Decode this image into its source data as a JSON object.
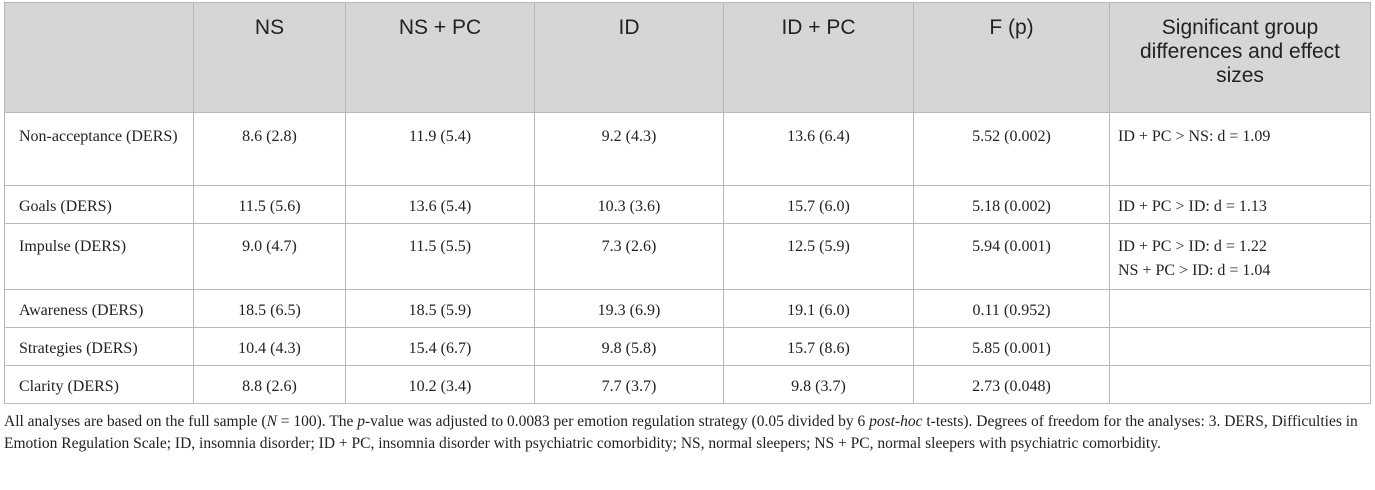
{
  "table": {
    "headers": [
      "",
      "NS",
      "NS + PC",
      "ID",
      "ID + PC",
      "F (p)",
      "Significant group differences and effect sizes"
    ],
    "rows": [
      {
        "label": "Non-acceptance (DERS)",
        "values": [
          "8.6 (2.8)",
          "11.9 (5.4)",
          "9.2 (4.3)",
          "13.6 (6.4)",
          "5.52 (0.002)"
        ],
        "sig": [
          "ID + PC > NS: d = 1.09"
        ]
      },
      {
        "label": "Goals (DERS)",
        "values": [
          "11.5 (5.6)",
          "13.6 (5.4)",
          "10.3 (3.6)",
          "15.7 (6.0)",
          "5.18 (0.002)"
        ],
        "sig": [
          "ID + PC > ID: d = 1.13"
        ]
      },
      {
        "label": "Impulse (DERS)",
        "values": [
          "9.0 (4.7)",
          "11.5 (5.5)",
          "7.3 (2.6)",
          "12.5 (5.9)",
          "5.94 (0.001)"
        ],
        "sig": [
          "ID + PC > ID: d = 1.22",
          "NS + PC > ID: d = 1.04"
        ]
      },
      {
        "label": "Awareness (DERS)",
        "values": [
          "18.5 (6.5)",
          "18.5 (5.9)",
          "19.3 (6.9)",
          "19.1 (6.0)",
          "0.11 (0.952)"
        ],
        "sig": []
      },
      {
        "label": "Strategies (DERS)",
        "values": [
          "10.4 (4.3)",
          "15.4 (6.7)",
          "9.8 (5.8)",
          "15.7 (8.6)",
          "5.85 (0.001)"
        ],
        "sig": []
      },
      {
        "label": "Clarity (DERS)",
        "values": [
          "8.8 (2.6)",
          "10.2 (3.4)",
          "7.7 (3.7)",
          "9.8 (3.7)",
          "2.73 (0.048)"
        ],
        "sig": []
      }
    ]
  },
  "footnote": {
    "p1": "All analyses are based on the full sample (",
    "n_symbol": "N",
    "p2": " = 100). The ",
    "p_symbol": "p",
    "p3": "-value was adjusted to 0.0083 per emotion regulation strategy (0.05 divided by 6 ",
    "posthoc": "post-hoc",
    "p4": " t-tests). Degrees of freedom for the analyses: 3. DERS, Difficulties in Emotion Regulation Scale; ID, insomnia disorder; ID + PC, insomnia disorder with psychiatric comorbidity; NS, normal sleepers; NS + PC, normal sleepers with psychiatric comorbidity."
  }
}
